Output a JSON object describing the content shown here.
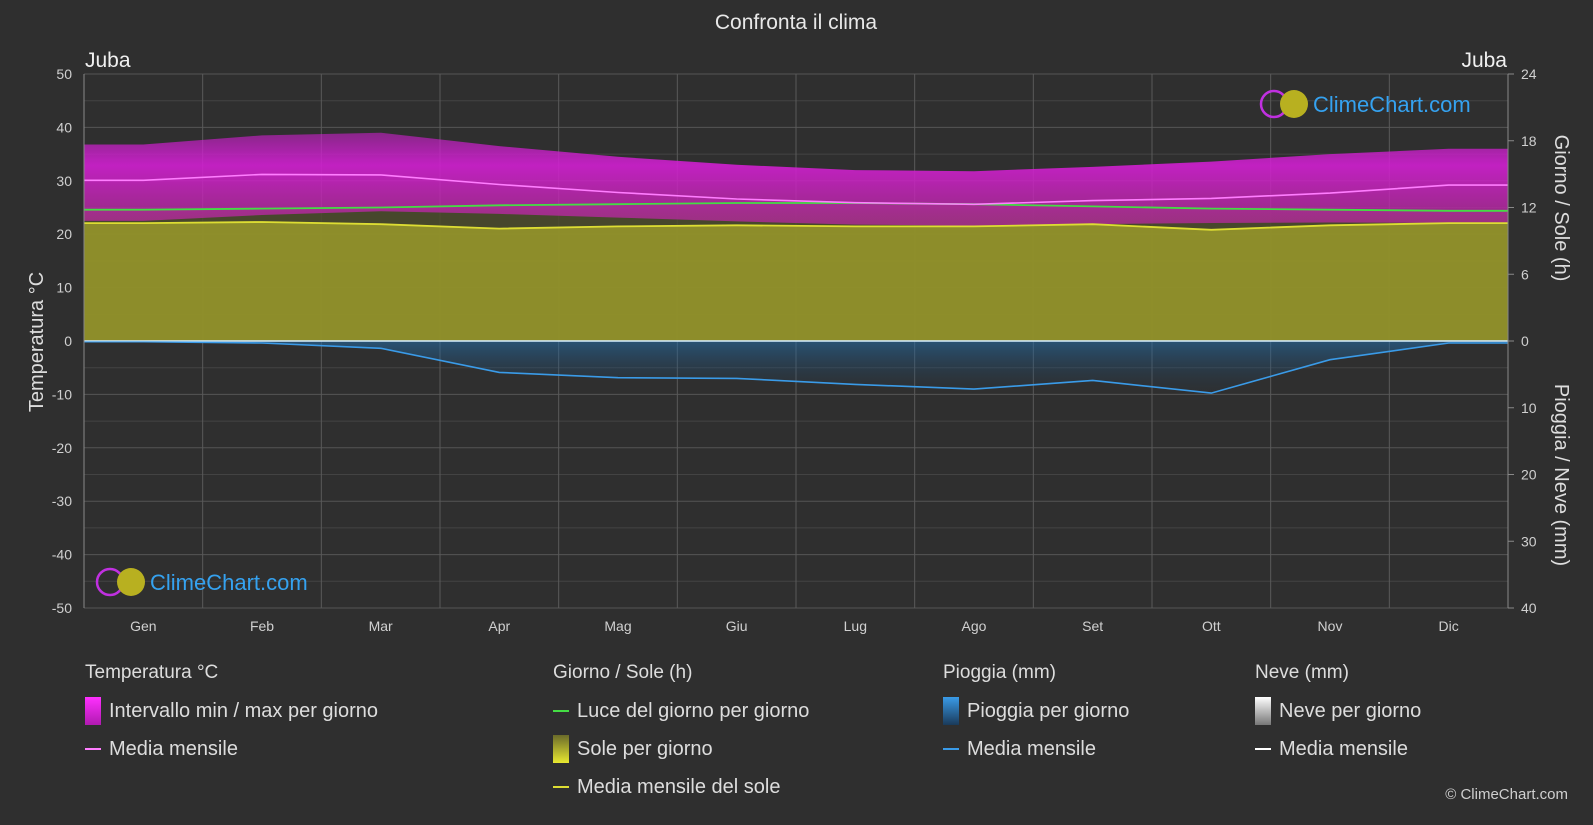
{
  "chart_data": {
    "type": "area",
    "title": "Confronta il clima",
    "location_left": "Juba",
    "location_right": "Juba",
    "categories": [
      "Gen",
      "Feb",
      "Mar",
      "Apr",
      "Mag",
      "Giu",
      "Lug",
      "Ago",
      "Set",
      "Ott",
      "Nov",
      "Dic"
    ],
    "y_left": {
      "label": "Temperatura °C",
      "range": [
        -50,
        50
      ],
      "ticks": [
        50,
        40,
        30,
        20,
        10,
        0,
        -10,
        -20,
        -30,
        -40,
        -50
      ]
    },
    "y_right_top": {
      "label": "Giorno / Sole (h)",
      "range": [
        0,
        24
      ],
      "ticks": [
        24,
        18,
        12,
        6,
        0
      ]
    },
    "y_right_bottom": {
      "label": "Pioggia / Neve (mm)",
      "range": [
        0,
        40
      ],
      "ticks": [
        0,
        10,
        20,
        30,
        40
      ]
    },
    "grid": true,
    "series": [
      {
        "name": "Media mensile",
        "group": "temperature",
        "unit": "°C",
        "color": "#ff7dff",
        "values": [
          30.1,
          31.2,
          31.1,
          29.3,
          27.8,
          26.6,
          25.9,
          25.6,
          26.3,
          26.7,
          27.7,
          29.2
        ]
      },
      {
        "name": "Intervallo min / max per giorno",
        "group": "temperature",
        "unit": "°C",
        "color": "#e020e0",
        "min": [
          22.5,
          23.6,
          24.3,
          23.8,
          23.1,
          22.4,
          21.8,
          21.6,
          21.9,
          22.1,
          22.2,
          22.1
        ],
        "max": [
          36.8,
          38.5,
          39.0,
          36.5,
          34.5,
          33.0,
          32.0,
          31.8,
          32.6,
          33.6,
          35.0,
          36.0
        ]
      },
      {
        "name": "Luce del giorno per giorno",
        "group": "sun",
        "unit": "h",
        "color": "#44dd44",
        "values": [
          11.8,
          11.9,
          12.0,
          12.2,
          12.3,
          12.4,
          12.4,
          12.3,
          12.1,
          11.9,
          11.8,
          11.7
        ]
      },
      {
        "name": "Media mensile del sole",
        "group": "sun",
        "unit": "h",
        "color": "#dddd33",
        "values": [
          10.6,
          10.7,
          10.5,
          10.1,
          10.3,
          10.4,
          10.3,
          10.3,
          10.5,
          10.0,
          10.4,
          10.6
        ]
      },
      {
        "name": "Media mensile",
        "group": "rain",
        "unit": "mm",
        "color": "#3a9be8",
        "values": [
          0.1,
          0.3,
          1.1,
          4.7,
          5.5,
          5.6,
          6.5,
          7.2,
          5.9,
          7.8,
          2.8,
          0.3
        ]
      },
      {
        "name": "Media mensile",
        "group": "snow",
        "unit": "mm",
        "color": "#ffffff",
        "values": [
          0,
          0,
          0,
          0,
          0,
          0,
          0,
          0,
          0,
          0,
          0,
          0
        ]
      }
    ]
  },
  "logo": {
    "text": "ClimeChart.com"
  },
  "legend": {
    "temperature": {
      "title": "Temperatura °C",
      "range_label": "Intervallo min / max per giorno",
      "mean_label": "Media mensile"
    },
    "sun": {
      "title": "Giorno / Sole (h)",
      "daylight_label": "Luce del giorno per giorno",
      "sun_label": "Sole per giorno",
      "sun_mean_label": "Media mensile del sole"
    },
    "rain": {
      "title": "Pioggia (mm)",
      "rain_label": "Pioggia per giorno",
      "mean_label": "Media mensile"
    },
    "snow": {
      "title": "Neve (mm)",
      "snow_label": "Neve per giorno",
      "mean_label": "Media mensile"
    }
  },
  "copyright": "© ClimeChart.com",
  "colors": {
    "background": "#2f2f2f",
    "grid": "#4e4e4e",
    "temperature_fill": "#c018c0",
    "sun_fill": "#9a9a2a",
    "rain_fill": "#1f5f8f",
    "logo_blue": "#35a2f0"
  }
}
